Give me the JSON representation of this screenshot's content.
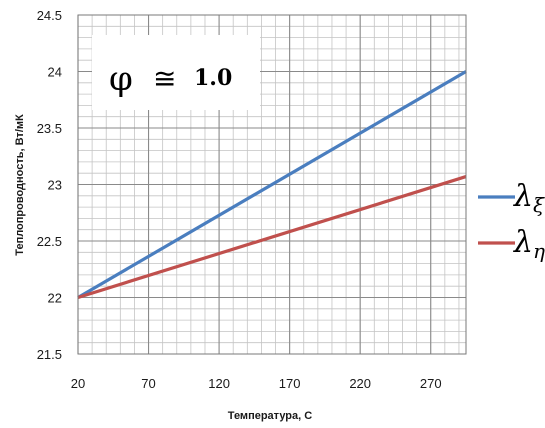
{
  "chart_data": {
    "type": "line",
    "ylabel": "Теплопроводность, Вт/мК",
    "xlabel": "Температура, С",
    "x_ticks": [
      20,
      70,
      120,
      170,
      220,
      270
    ],
    "y_ticks": [
      "21.5",
      "22",
      "22.5",
      "23",
      "23.5",
      "24",
      "24.5"
    ],
    "xlim": [
      20,
      295
    ],
    "ylim": [
      21.5,
      24.5
    ],
    "grid": true,
    "annotation": {
      "symbol": "φ",
      "approx": "≅",
      "value": "1.0"
    },
    "series": [
      {
        "name": "λξ",
        "symbol": "λ",
        "subscript": "ξ",
        "color": "#4a7ebf",
        "x": [
          20,
          295
        ],
        "y": [
          22.0,
          24.0
        ]
      },
      {
        "name": "λη",
        "symbol": "λ",
        "subscript": "η",
        "color": "#c0504d",
        "x": [
          20,
          295
        ],
        "y": [
          22.0,
          23.07
        ]
      }
    ],
    "legend_position": "right"
  }
}
